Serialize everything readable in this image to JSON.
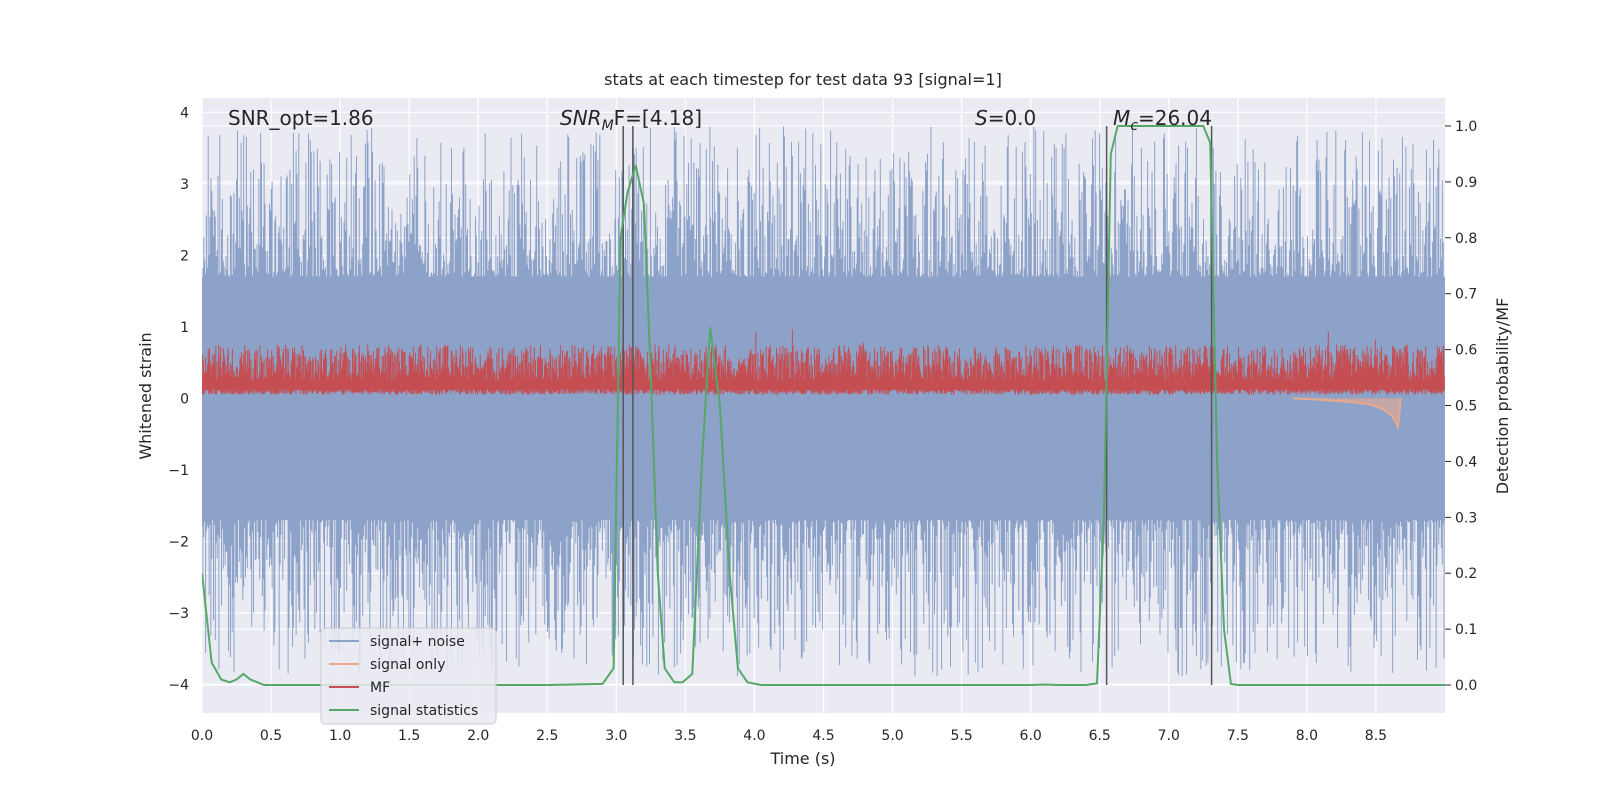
{
  "chart_data": {
    "type": "line",
    "title": "stats at each timestep for test data 93 [signal=1]",
    "xlabel": "Time (s)",
    "ylabel_left": "Whitened strain",
    "ylabel_right": "Detection probability/MF",
    "xlim": [
      0,
      9
    ],
    "ylim_left": [
      -4.4,
      4.2
    ],
    "ylim_right": [
      -0.05,
      1.05
    ],
    "x_ticks": [
      "0.0",
      "0.5",
      "1.0",
      "1.5",
      "2.0",
      "2.5",
      "3.0",
      "3.5",
      "4.0",
      "4.5",
      "5.0",
      "5.5",
      "6.0",
      "6.5",
      "7.0",
      "7.5",
      "8.0",
      "8.5"
    ],
    "y_ticks_left": [
      "4",
      "3",
      "2",
      "1",
      "0",
      "−1",
      "−2",
      "−3",
      "−4"
    ],
    "y_ticks_right": [
      "1.0",
      "0.9",
      "0.8",
      "0.7",
      "0.6",
      "0.5",
      "0.4",
      "0.3",
      "0.2",
      "0.1",
      "0.0"
    ],
    "grid": true,
    "annotations": {
      "snr_opt": "SNR_opt=1.86",
      "snr_mf_italic": "SNR",
      "snr_mf_sub": "M",
      "snr_mf_rest": "F=[4.18]",
      "s_italic": "S",
      "s_rest": "=0.0",
      "mc_italic": "M",
      "mc_sub": "c",
      "mc_rest": "=26.04"
    },
    "vertical_lines_x": [
      3.05,
      3.12,
      6.55,
      7.31
    ],
    "legend": {
      "position": "lower-left",
      "entries": [
        "signal+ noise",
        "signal only",
        "MF",
        "signal statistics"
      ]
    },
    "colors": {
      "signal_noise": "#8da2c8",
      "signal_only": "#e8a98e",
      "mf": "#c44e52",
      "signal_statistics": "#55a868",
      "background": "#eaeaf2",
      "vline": "#555555"
    },
    "series": [
      {
        "name": "signal statistics",
        "axis": "right",
        "x": [
          0.0,
          0.07,
          0.14,
          0.2,
          0.25,
          0.3,
          0.35,
          0.45,
          0.6,
          1.0,
          1.5,
          2.0,
          2.5,
          2.9,
          2.98,
          3.03,
          3.08,
          3.14,
          3.2,
          3.25,
          3.3,
          3.35,
          3.42,
          3.48,
          3.55,
          3.62,
          3.68,
          3.75,
          3.82,
          3.88,
          3.95,
          4.05,
          4.5,
          5.0,
          5.5,
          6.0,
          6.1,
          6.2,
          6.4,
          6.48,
          6.53,
          6.58,
          6.63,
          6.7,
          7.0,
          7.25,
          7.3,
          7.35,
          7.4,
          7.45,
          7.5,
          8.0,
          8.5,
          9.0
        ],
        "y": [
          0.2,
          0.04,
          0.01,
          0.005,
          0.01,
          0.02,
          0.01,
          0.0,
          0.0,
          0.0,
          0.0,
          0.0,
          0.0,
          0.002,
          0.03,
          0.8,
          0.88,
          0.93,
          0.86,
          0.55,
          0.2,
          0.03,
          0.005,
          0.005,
          0.02,
          0.4,
          0.64,
          0.5,
          0.2,
          0.03,
          0.005,
          0.0,
          0.0,
          0.0,
          0.0,
          0.0,
          0.001,
          0.0,
          0.0,
          0.003,
          0.3,
          0.95,
          1.0,
          1.0,
          1.0,
          1.0,
          0.97,
          0.4,
          0.1,
          0.002,
          0.0,
          0.0,
          0.0,
          0.0
        ]
      },
      {
        "name": "signal only",
        "axis": "left",
        "x": [
          7.9,
          8.1,
          8.3,
          8.45,
          8.55,
          8.62,
          8.66,
          8.68
        ],
        "y": [
          0.0,
          -0.02,
          -0.05,
          -0.08,
          -0.15,
          -0.25,
          -0.4,
          0.0
        ]
      }
    ],
    "noise_envelope": {
      "name": "signal+ noise",
      "axis": "left",
      "dense_band": [
        -1.7,
        1.7
      ],
      "spike_max": 3.8,
      "spike_min": -3.9
    },
    "mf_band": {
      "name": "MF",
      "axis": "left",
      "band": [
        0.05,
        0.55
      ],
      "spike_max": 1.0
    }
  }
}
